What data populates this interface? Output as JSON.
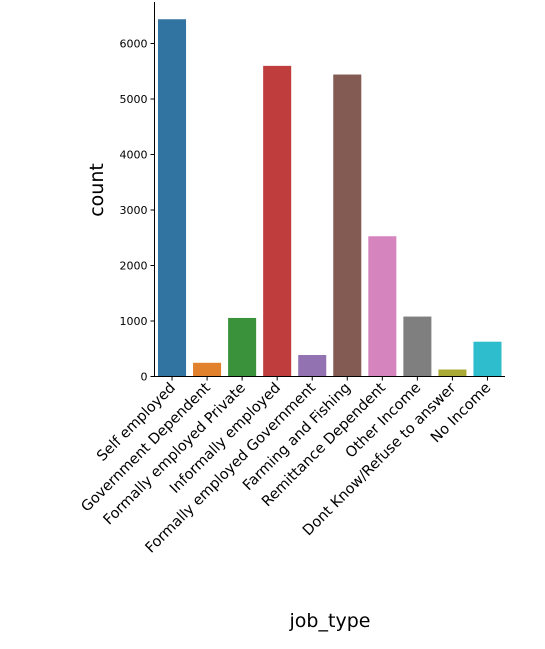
{
  "chart_data": {
    "type": "bar",
    "title": "",
    "xlabel": "job_type",
    "ylabel": "count",
    "categories": [
      "Self employed",
      "Government Dependent",
      "Formally employed Private",
      "Informally employed",
      "Formally employed Government",
      "Farming and Fishing",
      "Remittance Dependent",
      "Other Income",
      "Dont Know/Refuse to answer",
      "No Income"
    ],
    "values": [
      6437,
      247,
      1055,
      5597,
      387,
      5441,
      2527,
      1080,
      126,
      627
    ],
    "colors": [
      "#3274a1",
      "#e1812c",
      "#3a923a",
      "#c03d3e",
      "#9372b2",
      "#845b53",
      "#d684bd",
      "#7f7f7f",
      "#a9aa35",
      "#2ebdcd"
    ],
    "yticks": [
      0,
      1000,
      2000,
      3000,
      4000,
      5000,
      6000
    ],
    "ylim": [
      0,
      6700
    ],
    "grid": false,
    "legend": "none"
  }
}
